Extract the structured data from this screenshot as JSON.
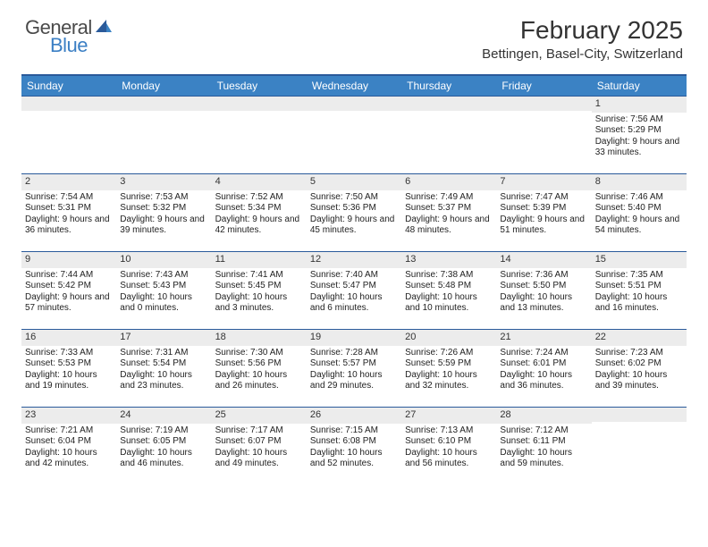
{
  "logo": {
    "general": "General",
    "blue": "Blue"
  },
  "title": "February 2025",
  "location": "Bettingen, Basel-City, Switzerland",
  "colors": {
    "header_bg": "#3b82c4",
    "header_border": "#2a5a9a",
    "daynum_bg": "#ececec",
    "logo_gray": "#4a4a4a",
    "logo_blue": "#3b7fc4"
  },
  "daysOfWeek": [
    "Sunday",
    "Monday",
    "Tuesday",
    "Wednesday",
    "Thursday",
    "Friday",
    "Saturday"
  ],
  "weeks": [
    [
      {
        "n": "",
        "sunrise": "",
        "sunset": "",
        "daylight": ""
      },
      {
        "n": "",
        "sunrise": "",
        "sunset": "",
        "daylight": ""
      },
      {
        "n": "",
        "sunrise": "",
        "sunset": "",
        "daylight": ""
      },
      {
        "n": "",
        "sunrise": "",
        "sunset": "",
        "daylight": ""
      },
      {
        "n": "",
        "sunrise": "",
        "sunset": "",
        "daylight": ""
      },
      {
        "n": "",
        "sunrise": "",
        "sunset": "",
        "daylight": ""
      },
      {
        "n": "1",
        "sunrise": "Sunrise: 7:56 AM",
        "sunset": "Sunset: 5:29 PM",
        "daylight": "Daylight: 9 hours and 33 minutes."
      }
    ],
    [
      {
        "n": "2",
        "sunrise": "Sunrise: 7:54 AM",
        "sunset": "Sunset: 5:31 PM",
        "daylight": "Daylight: 9 hours and 36 minutes."
      },
      {
        "n": "3",
        "sunrise": "Sunrise: 7:53 AM",
        "sunset": "Sunset: 5:32 PM",
        "daylight": "Daylight: 9 hours and 39 minutes."
      },
      {
        "n": "4",
        "sunrise": "Sunrise: 7:52 AM",
        "sunset": "Sunset: 5:34 PM",
        "daylight": "Daylight: 9 hours and 42 minutes."
      },
      {
        "n": "5",
        "sunrise": "Sunrise: 7:50 AM",
        "sunset": "Sunset: 5:36 PM",
        "daylight": "Daylight: 9 hours and 45 minutes."
      },
      {
        "n": "6",
        "sunrise": "Sunrise: 7:49 AM",
        "sunset": "Sunset: 5:37 PM",
        "daylight": "Daylight: 9 hours and 48 minutes."
      },
      {
        "n": "7",
        "sunrise": "Sunrise: 7:47 AM",
        "sunset": "Sunset: 5:39 PM",
        "daylight": "Daylight: 9 hours and 51 minutes."
      },
      {
        "n": "8",
        "sunrise": "Sunrise: 7:46 AM",
        "sunset": "Sunset: 5:40 PM",
        "daylight": "Daylight: 9 hours and 54 minutes."
      }
    ],
    [
      {
        "n": "9",
        "sunrise": "Sunrise: 7:44 AM",
        "sunset": "Sunset: 5:42 PM",
        "daylight": "Daylight: 9 hours and 57 minutes."
      },
      {
        "n": "10",
        "sunrise": "Sunrise: 7:43 AM",
        "sunset": "Sunset: 5:43 PM",
        "daylight": "Daylight: 10 hours and 0 minutes."
      },
      {
        "n": "11",
        "sunrise": "Sunrise: 7:41 AM",
        "sunset": "Sunset: 5:45 PM",
        "daylight": "Daylight: 10 hours and 3 minutes."
      },
      {
        "n": "12",
        "sunrise": "Sunrise: 7:40 AM",
        "sunset": "Sunset: 5:47 PM",
        "daylight": "Daylight: 10 hours and 6 minutes."
      },
      {
        "n": "13",
        "sunrise": "Sunrise: 7:38 AM",
        "sunset": "Sunset: 5:48 PM",
        "daylight": "Daylight: 10 hours and 10 minutes."
      },
      {
        "n": "14",
        "sunrise": "Sunrise: 7:36 AM",
        "sunset": "Sunset: 5:50 PM",
        "daylight": "Daylight: 10 hours and 13 minutes."
      },
      {
        "n": "15",
        "sunrise": "Sunrise: 7:35 AM",
        "sunset": "Sunset: 5:51 PM",
        "daylight": "Daylight: 10 hours and 16 minutes."
      }
    ],
    [
      {
        "n": "16",
        "sunrise": "Sunrise: 7:33 AM",
        "sunset": "Sunset: 5:53 PM",
        "daylight": "Daylight: 10 hours and 19 minutes."
      },
      {
        "n": "17",
        "sunrise": "Sunrise: 7:31 AM",
        "sunset": "Sunset: 5:54 PM",
        "daylight": "Daylight: 10 hours and 23 minutes."
      },
      {
        "n": "18",
        "sunrise": "Sunrise: 7:30 AM",
        "sunset": "Sunset: 5:56 PM",
        "daylight": "Daylight: 10 hours and 26 minutes."
      },
      {
        "n": "19",
        "sunrise": "Sunrise: 7:28 AM",
        "sunset": "Sunset: 5:57 PM",
        "daylight": "Daylight: 10 hours and 29 minutes."
      },
      {
        "n": "20",
        "sunrise": "Sunrise: 7:26 AM",
        "sunset": "Sunset: 5:59 PM",
        "daylight": "Daylight: 10 hours and 32 minutes."
      },
      {
        "n": "21",
        "sunrise": "Sunrise: 7:24 AM",
        "sunset": "Sunset: 6:01 PM",
        "daylight": "Daylight: 10 hours and 36 minutes."
      },
      {
        "n": "22",
        "sunrise": "Sunrise: 7:23 AM",
        "sunset": "Sunset: 6:02 PM",
        "daylight": "Daylight: 10 hours and 39 minutes."
      }
    ],
    [
      {
        "n": "23",
        "sunrise": "Sunrise: 7:21 AM",
        "sunset": "Sunset: 6:04 PM",
        "daylight": "Daylight: 10 hours and 42 minutes."
      },
      {
        "n": "24",
        "sunrise": "Sunrise: 7:19 AM",
        "sunset": "Sunset: 6:05 PM",
        "daylight": "Daylight: 10 hours and 46 minutes."
      },
      {
        "n": "25",
        "sunrise": "Sunrise: 7:17 AM",
        "sunset": "Sunset: 6:07 PM",
        "daylight": "Daylight: 10 hours and 49 minutes."
      },
      {
        "n": "26",
        "sunrise": "Sunrise: 7:15 AM",
        "sunset": "Sunset: 6:08 PM",
        "daylight": "Daylight: 10 hours and 52 minutes."
      },
      {
        "n": "27",
        "sunrise": "Sunrise: 7:13 AM",
        "sunset": "Sunset: 6:10 PM",
        "daylight": "Daylight: 10 hours and 56 minutes."
      },
      {
        "n": "28",
        "sunrise": "Sunrise: 7:12 AM",
        "sunset": "Sunset: 6:11 PM",
        "daylight": "Daylight: 10 hours and 59 minutes."
      },
      {
        "n": "",
        "sunrise": "",
        "sunset": "",
        "daylight": ""
      }
    ]
  ]
}
